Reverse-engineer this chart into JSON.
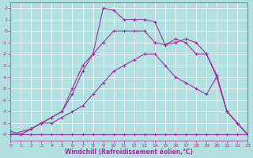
{
  "xlabel": "Windchill (Refroidissement éolien,°C)",
  "bg_color": "#b2e0e0",
  "grid_color": "#ffffff",
  "line_color": "#993399",
  "xlim": [
    0,
    23
  ],
  "ylim": [
    -9.5,
    2.5
  ],
  "xticks": [
    0,
    1,
    2,
    3,
    4,
    5,
    6,
    7,
    8,
    9,
    10,
    11,
    12,
    13,
    14,
    15,
    16,
    17,
    18,
    19,
    20,
    21,
    22,
    23
  ],
  "yticks": [
    -9,
    -8,
    -7,
    -6,
    -5,
    -4,
    -3,
    -2,
    -1,
    0,
    1,
    2
  ],
  "lines": [
    {
      "x": [
        0,
        1,
        2,
        3,
        4,
        5,
        6,
        7,
        8,
        9,
        10,
        11,
        12,
        13,
        14,
        15,
        16,
        17,
        18,
        19,
        20,
        21,
        22,
        23
      ],
      "y": [
        -9,
        -9,
        -9,
        -9,
        -9,
        -9,
        -9,
        -9,
        -9,
        -9,
        -9,
        -9,
        -9,
        -9,
        -9,
        -9,
        -9,
        -9,
        -9,
        -9,
        -9,
        -9,
        -9,
        -9
      ]
    },
    {
      "x": [
        0,
        1,
        2,
        3,
        4,
        5,
        6,
        7,
        8,
        9,
        10,
        11,
        12,
        13,
        14,
        15,
        16,
        17,
        18,
        19,
        20,
        21,
        22,
        23
      ],
      "y": [
        -9,
        -9,
        -8.5,
        -8,
        -8,
        -7.5,
        -7,
        -6.5,
        -5.5,
        -4.5,
        -3.5,
        -3,
        -2.5,
        -2,
        -2,
        -3,
        -4,
        -4.5,
        -5,
        -5.5,
        -4,
        -7,
        -8,
        -9
      ]
    },
    {
      "x": [
        0,
        2,
        3,
        4,
        5,
        6,
        7,
        8,
        9,
        10,
        11,
        12,
        13,
        14,
        15,
        16,
        17,
        18,
        19,
        20,
        21,
        22,
        23
      ],
      "y": [
        -9,
        -8.5,
        -8,
        -7.5,
        -7,
        -5.5,
        -3.5,
        -2,
        -1,
        0,
        0,
        0,
        0,
        -1,
        -1.2,
        -1,
        -0.7,
        -1,
        -2,
        -4,
        -7,
        -8,
        -9
      ]
    },
    {
      "x": [
        0,
        1,
        2,
        3,
        4,
        5,
        6,
        7,
        8,
        9,
        10,
        11,
        12,
        13,
        14,
        15,
        16,
        17,
        18,
        19,
        20,
        21,
        22,
        23
      ],
      "y": [
        -8.7,
        -9,
        -8.5,
        -8,
        -7.5,
        -7,
        -5,
        -3,
        -2,
        2,
        1.8,
        1,
        1,
        1,
        0.8,
        -1.2,
        -0.7,
        -1,
        -2,
        -2,
        -3.8,
        -7,
        -8,
        -9
      ]
    }
  ]
}
